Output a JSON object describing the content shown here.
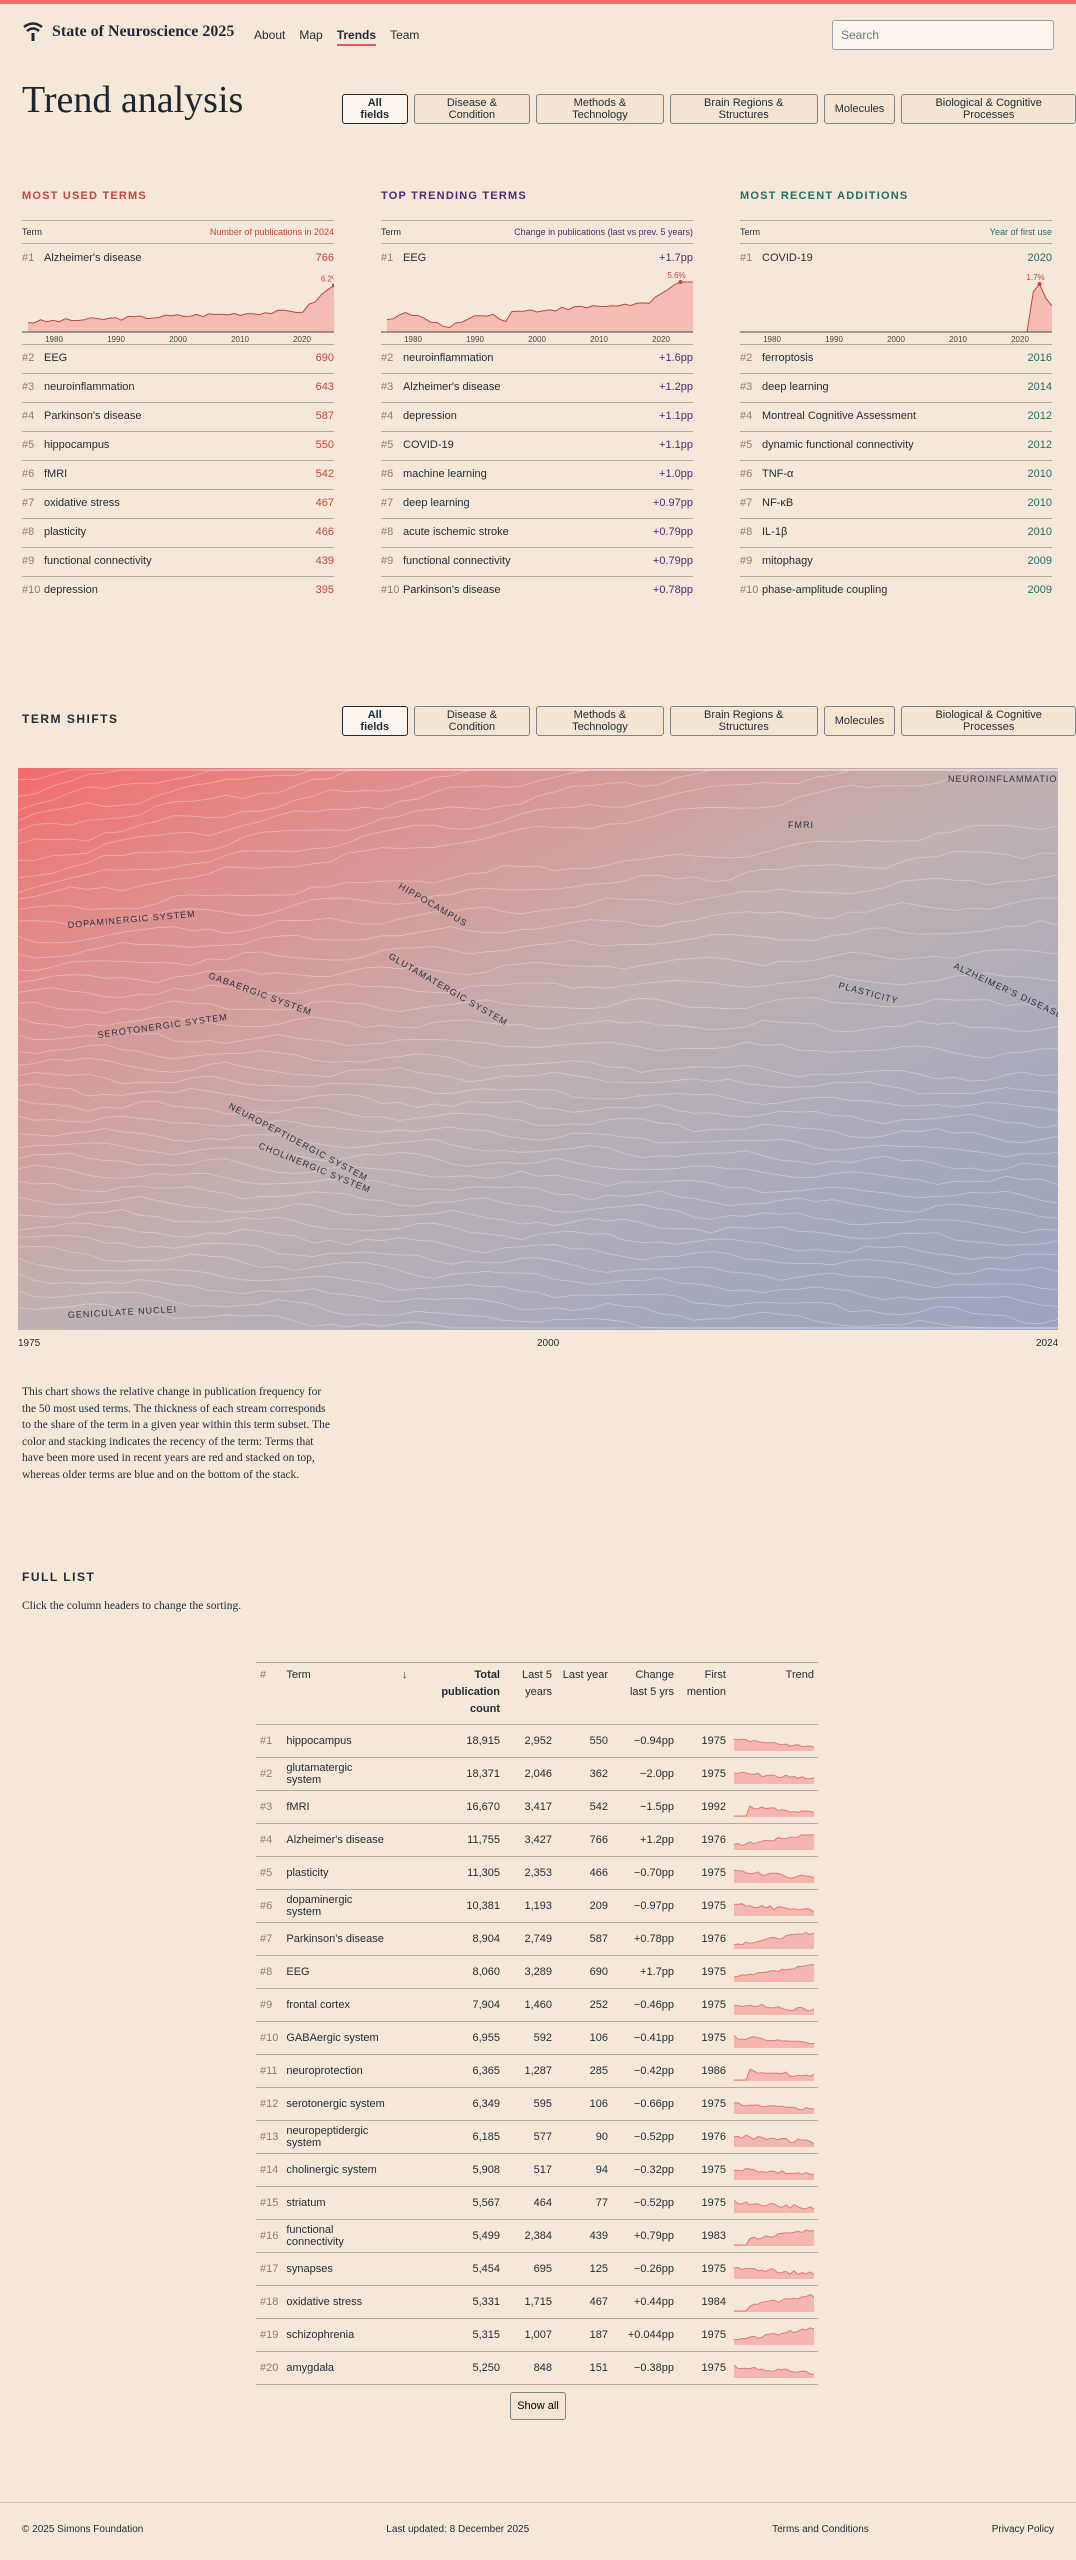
{
  "brand": {
    "title": "State of Neuroscience 2025"
  },
  "nav": [
    "About",
    "Map",
    "Trends",
    "Team"
  ],
  "search": {
    "placeholder": "Search"
  },
  "page_title": "Trend analysis",
  "filters": [
    "All fields",
    "Disease & Condition",
    "Methods & Technology",
    "Brain Regions & Structures",
    "Molecules",
    "Biological & Cognitive Processes"
  ],
  "colors": {
    "used": "#c0453f",
    "trending": "#4a2a7a",
    "recent": "#1f6f6a",
    "accent": "#f26b6b"
  },
  "columns": [
    {
      "title": "MOST USED TERMS",
      "col_term": "Term",
      "col_value": "Number of publications in 2024",
      "top": {
        "rank": "#1",
        "term": "Alzheimer's disease",
        "value": "766",
        "peak": "6.2%"
      },
      "items": [
        {
          "rank": "#2",
          "term": "EEG",
          "value": "690"
        },
        {
          "rank": "#3",
          "term": "neuroinflammation",
          "value": "643"
        },
        {
          "rank": "#4",
          "term": "Parkinson's disease",
          "value": "587"
        },
        {
          "rank": "#5",
          "term": "hippocampus",
          "value": "550"
        },
        {
          "rank": "#6",
          "term": "fMRI",
          "value": "542"
        },
        {
          "rank": "#7",
          "term": "oxidative stress",
          "value": "467"
        },
        {
          "rank": "#8",
          "term": "plasticity",
          "value": "466"
        },
        {
          "rank": "#9",
          "term": "functional connectivity",
          "value": "439"
        },
        {
          "rank": "#10",
          "term": "depression",
          "value": "395"
        }
      ]
    },
    {
      "title": "TOP TRENDING TERMS",
      "col_term": "Term",
      "col_value": "Change in publications (last vs prev. 5 years)",
      "top": {
        "rank": "#1",
        "term": "EEG",
        "value": "+1.7pp",
        "peak": "5.6%"
      },
      "items": [
        {
          "rank": "#2",
          "term": "neuroinflammation",
          "value": "+1.6pp"
        },
        {
          "rank": "#3",
          "term": "Alzheimer's disease",
          "value": "+1.2pp"
        },
        {
          "rank": "#4",
          "term": "depression",
          "value": "+1.1pp"
        },
        {
          "rank": "#5",
          "term": "COVID-19",
          "value": "+1.1pp"
        },
        {
          "rank": "#6",
          "term": "machine learning",
          "value": "+1.0pp"
        },
        {
          "rank": "#7",
          "term": "deep learning",
          "value": "+0.97pp"
        },
        {
          "rank": "#8",
          "term": "acute ischemic stroke",
          "value": "+0.79pp"
        },
        {
          "rank": "#9",
          "term": "functional connectivity",
          "value": "+0.79pp"
        },
        {
          "rank": "#10",
          "term": "Parkinson's disease",
          "value": "+0.78pp"
        }
      ]
    },
    {
      "title": "MOST RECENT ADDITIONS",
      "col_term": "Term",
      "col_value": "Year of first use",
      "top": {
        "rank": "#1",
        "term": "COVID-19",
        "value": "2020",
        "peak": "1.7%"
      },
      "items": [
        {
          "rank": "#2",
          "term": "ferroptosis",
          "value": "2016"
        },
        {
          "rank": "#3",
          "term": "deep learning",
          "value": "2014"
        },
        {
          "rank": "#4",
          "term": "Montreal Cognitive Assessment",
          "value": "2012"
        },
        {
          "rank": "#5",
          "term": "dynamic functional connectivity",
          "value": "2012"
        },
        {
          "rank": "#6",
          "term": "TNF-α",
          "value": "2010"
        },
        {
          "rank": "#7",
          "term": "NF-κB",
          "value": "2010"
        },
        {
          "rank": "#8",
          "term": "IL-1β",
          "value": "2010"
        },
        {
          "rank": "#9",
          "term": "mitophagy",
          "value": "2009"
        },
        {
          "rank": "#10",
          "term": "phase-amplitude coupling",
          "value": "2009"
        }
      ]
    }
  ],
  "spark_axis": [
    "1980",
    "1990",
    "2000",
    "2010",
    "2020"
  ],
  "term_shifts": {
    "title": "TERM SHIFTS",
    "axis": [
      "1975",
      "2000",
      "2024"
    ],
    "labels": [
      "NEUROINFLAMMATION",
      "FMRI",
      "HIPPOCAMPUS",
      "DOPAMINERGIC SYSTEM",
      "GLUTAMATERGIC SYSTEM",
      "PLASTICITY",
      "ALZHEIMER'S DISEASE",
      "GABAERGIC SYSTEM",
      "SEROTONERGIC SYSTEM",
      "NEUROPEPTIDERGIC SYSTEM",
      "CHOLINERGIC SYSTEM",
      "GENICULATE NUCLEI"
    ]
  },
  "caption": "This chart shows the relative change in publication frequency for the 50 most used terms. The thickness of each stream corresponds to the share of the term in a given year within this term subset. The color and stacking indicates the recency of the term: Terms that have been more used in recent years are red and stacked on top, whereas older terms are blue and on the bottom of the stack.",
  "full_list": {
    "title": "FULL LIST",
    "subtitle": "Click the column headers to change the sorting.",
    "headers": {
      "rank": "#",
      "term": "Term",
      "total": "Total publication count",
      "sort_arrow": "↓",
      "last5": "Last 5 years",
      "lastyear": "Last year",
      "change": "Change last 5 yrs",
      "first": "First mention",
      "trend": "Trend"
    },
    "rows": [
      {
        "rank": "#1",
        "term": "hippocampus",
        "total": "18,915",
        "last5": "2,952",
        "lastyear": "550",
        "change": "−0.94pp",
        "first": "1975"
      },
      {
        "rank": "#2",
        "term": "glutamatergic system",
        "total": "18,371",
        "last5": "2,046",
        "lastyear": "362",
        "change": "−2.0pp",
        "first": "1975"
      },
      {
        "rank": "#3",
        "term": "fMRI",
        "total": "16,670",
        "last5": "3,417",
        "lastyear": "542",
        "change": "−1.5pp",
        "first": "1992"
      },
      {
        "rank": "#4",
        "term": "Alzheimer's disease",
        "total": "11,755",
        "last5": "3,427",
        "lastyear": "766",
        "change": "+1.2pp",
        "first": "1976"
      },
      {
        "rank": "#5",
        "term": "plasticity",
        "total": "11,305",
        "last5": "2,353",
        "lastyear": "466",
        "change": "−0.70pp",
        "first": "1975"
      },
      {
        "rank": "#6",
        "term": "dopaminergic system",
        "total": "10,381",
        "last5": "1,193",
        "lastyear": "209",
        "change": "−0.97pp",
        "first": "1975"
      },
      {
        "rank": "#7",
        "term": "Parkinson's disease",
        "total": "8,904",
        "last5": "2,749",
        "lastyear": "587",
        "change": "+0.78pp",
        "first": "1976"
      },
      {
        "rank": "#8",
        "term": "EEG",
        "total": "8,060",
        "last5": "3,289",
        "lastyear": "690",
        "change": "+1.7pp",
        "first": "1975"
      },
      {
        "rank": "#9",
        "term": "frontal cortex",
        "total": "7,904",
        "last5": "1,460",
        "lastyear": "252",
        "change": "−0.46pp",
        "first": "1975"
      },
      {
        "rank": "#10",
        "term": "GABAergic system",
        "total": "6,955",
        "last5": "592",
        "lastyear": "106",
        "change": "−0.41pp",
        "first": "1975"
      },
      {
        "rank": "#11",
        "term": "neuroprotection",
        "total": "6,365",
        "last5": "1,287",
        "lastyear": "285",
        "change": "−0.42pp",
        "first": "1986"
      },
      {
        "rank": "#12",
        "term": "serotonergic system",
        "total": "6,349",
        "last5": "595",
        "lastyear": "106",
        "change": "−0.66pp",
        "first": "1975"
      },
      {
        "rank": "#13",
        "term": "neuropeptidergic system",
        "total": "6,185",
        "last5": "577",
        "lastyear": "90",
        "change": "−0.52pp",
        "first": "1976"
      },
      {
        "rank": "#14",
        "term": "cholinergic system",
        "total": "5,908",
        "last5": "517",
        "lastyear": "94",
        "change": "−0.32pp",
        "first": "1975"
      },
      {
        "rank": "#15",
        "term": "striatum",
        "total": "5,567",
        "last5": "464",
        "lastyear": "77",
        "change": "−0.52pp",
        "first": "1975"
      },
      {
        "rank": "#16",
        "term": "functional connectivity",
        "total": "5,499",
        "last5": "2,384",
        "lastyear": "439",
        "change": "+0.79pp",
        "first": "1983"
      },
      {
        "rank": "#17",
        "term": "synapses",
        "total": "5,454",
        "last5": "695",
        "lastyear": "125",
        "change": "−0.26pp",
        "first": "1975"
      },
      {
        "rank": "#18",
        "term": "oxidative stress",
        "total": "5,331",
        "last5": "1,715",
        "lastyear": "467",
        "change": "+0.44pp",
        "first": "1984"
      },
      {
        "rank": "#19",
        "term": "schizophrenia",
        "total": "5,315",
        "last5": "1,007",
        "lastyear": "187",
        "change": "+0.044pp",
        "first": "1975"
      },
      {
        "rank": "#20",
        "term": "amygdala",
        "total": "5,250",
        "last5": "848",
        "lastyear": "151",
        "change": "−0.38pp",
        "first": "1975"
      }
    ],
    "show_all": "Show all"
  },
  "footer": {
    "copyright": "© 2025 Simons Foundation",
    "updated": "Last updated: 8 December 2025",
    "terms": "Terms and Conditions",
    "privacy": "Privacy Policy"
  }
}
